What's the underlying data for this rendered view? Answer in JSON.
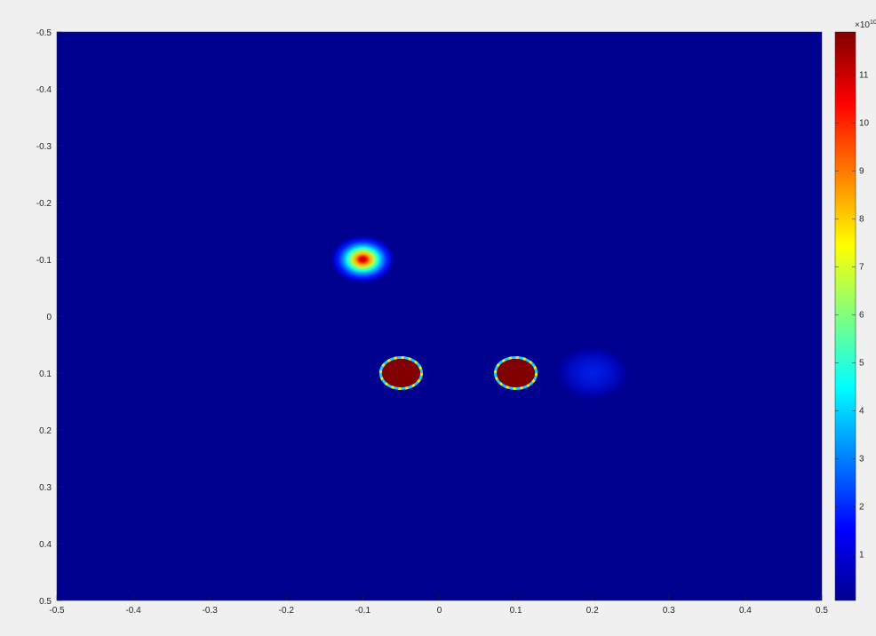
{
  "chart_data": {
    "type": "heatmap",
    "title": "",
    "xlabel": "",
    "ylabel": "",
    "xlim": [
      -0.5,
      0.5
    ],
    "ylim": [
      -0.5,
      0.5
    ],
    "y_direction": "reverse",
    "grid": false,
    "x_ticks": [
      "-0.5",
      "-0.4",
      "-0.3",
      "-0.2",
      "-0.1",
      "0",
      "0.1",
      "0.2",
      "0.3",
      "0.4",
      "0.5"
    ],
    "y_ticks": [
      "-0.5",
      "-0.4",
      "-0.3",
      "-0.2",
      "-0.1",
      "0",
      "0.1",
      "0.2",
      "0.3",
      "0.4",
      "0.5"
    ],
    "colormap": "jet",
    "background_color": "#00008f",
    "colorbar": {
      "exponent_label": "×10",
      "exponent_power": "10",
      "ticks": [
        "1",
        "2",
        "3",
        "4",
        "5",
        "6",
        "7",
        "8",
        "9",
        "10",
        "11"
      ],
      "range": [
        0.05,
        11.9
      ]
    },
    "features": [
      {
        "kind": "gaussian",
        "x": -0.1,
        "y": -0.1,
        "peak": 11.9,
        "sigma": 0.022
      },
      {
        "kind": "disk",
        "x": -0.05,
        "y": 0.1,
        "radius": 0.025,
        "value": 11.9
      },
      {
        "kind": "disk",
        "x": 0.1,
        "y": 0.1,
        "radius": 0.025,
        "value": 11.9
      },
      {
        "kind": "gaussian",
        "x": 0.2,
        "y": 0.1,
        "peak": 1.9,
        "sigma": 0.025
      }
    ]
  }
}
